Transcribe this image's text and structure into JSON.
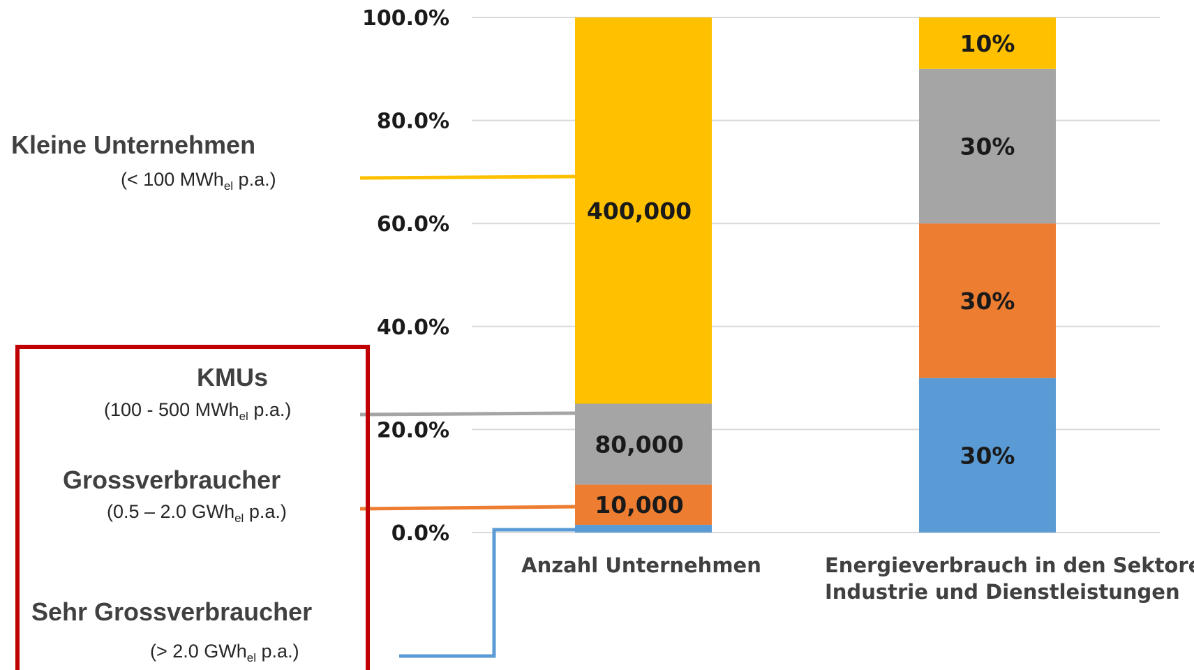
{
  "chart_data": {
    "type": "bar",
    "stacked": true,
    "ylim": [
      0,
      100
    ],
    "yticks": [
      0,
      20,
      40,
      60,
      80,
      100
    ],
    "ytick_labels": [
      "0.0%",
      "20.0%",
      "40.0%",
      "60.0%",
      "80.0%",
      "100.0%"
    ],
    "grid": true,
    "categories": [
      "Anzahl Unternehmen",
      "Energieverbrauch in den Sektoren Industrie und Dienstleistungen"
    ],
    "category_lines": [
      [
        "Anzahl Unternehmen"
      ],
      [
        "Energieverbrauch in den Sektoren",
        "Industrie und Dienstleistungen"
      ]
    ],
    "series": [
      {
        "name": "Sehr Grossverbraucher",
        "color": "#5b9bd5",
        "values": [
          1.5,
          30
        ],
        "labels": [
          "",
          "30%"
        ]
      },
      {
        "name": "Grossverbraucher",
        "color": "#ed7d31",
        "values": [
          7.8,
          30
        ],
        "labels": [
          "10,000",
          "30%"
        ]
      },
      {
        "name": "KMUs",
        "color": "#a5a5a5",
        "values": [
          15.7,
          30
        ],
        "labels": [
          "80,000",
          "30%"
        ]
      },
      {
        "name": "Kleine Unternehmen",
        "color": "#ffc000",
        "values": [
          75,
          10
        ],
        "labels": [
          "400,000",
          "10%"
        ]
      }
    ]
  },
  "classes": [
    {
      "name": "Kleine Unternehmen",
      "sub_pre": "(< 100 MWh",
      "sub_idx": "el",
      "sub_post": " p.a.)",
      "color": "#ffc000"
    },
    {
      "name": "KMUs",
      "sub_pre": "(100 - 500 MWh",
      "sub_idx": "el",
      "sub_post": " p.a.)",
      "color": "#a5a5a5"
    },
    {
      "name": "Grossverbraucher",
      "sub_pre": "(0.5 – 2.0 GWh",
      "sub_idx": "el",
      "sub_post": " p.a.)",
      "color": "#ed7d31"
    },
    {
      "name": "Sehr Grossverbraucher",
      "sub_pre": "(> 2.0 GWh",
      "sub_idx": "el",
      "sub_post": " p.a.)",
      "color": "#5b9bd5"
    }
  ],
  "highlight_color": "#c00000"
}
